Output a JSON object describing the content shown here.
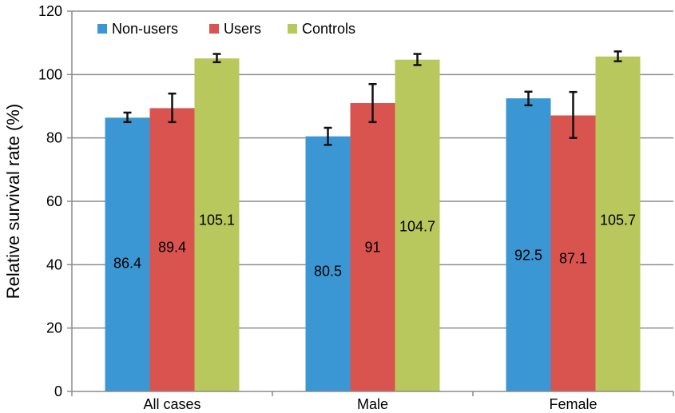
{
  "chart_data": {
    "type": "bar",
    "title": "",
    "xlabel": "",
    "ylabel": "Relative survival rate (%)",
    "ylim": [
      0,
      120
    ],
    "yticks": [
      0,
      20,
      40,
      60,
      80,
      100,
      120
    ],
    "grid": true,
    "legend_position": "top-left",
    "categories": [
      "All cases",
      "Male",
      "Female"
    ],
    "series": [
      {
        "name": "Non-users",
        "color": "#3b97d3",
        "values": [
          86.4,
          80.5,
          92.5
        ],
        "labels": [
          "86.4",
          "80.5",
          "92.5"
        ],
        "error_low": [
          85.0,
          77.8,
          90.3
        ],
        "error_high": [
          88.0,
          83.2,
          94.6
        ]
      },
      {
        "name": "Users",
        "color": "#d9534f",
        "values": [
          89.4,
          91,
          87.1
        ],
        "labels": [
          "89.4",
          "91",
          "87.1"
        ],
        "error_low": [
          85.0,
          85.0,
          80.0
        ],
        "error_high": [
          94.0,
          97.0,
          94.5
        ]
      },
      {
        "name": "Controls",
        "color": "#b9c85c",
        "values": [
          105.1,
          104.7,
          105.7
        ],
        "labels": [
          "105.1",
          "104.7",
          "105.7"
        ],
        "error_low": [
          103.9,
          103.0,
          104.2
        ],
        "error_high": [
          106.5,
          106.5,
          107.3
        ]
      }
    ]
  }
}
